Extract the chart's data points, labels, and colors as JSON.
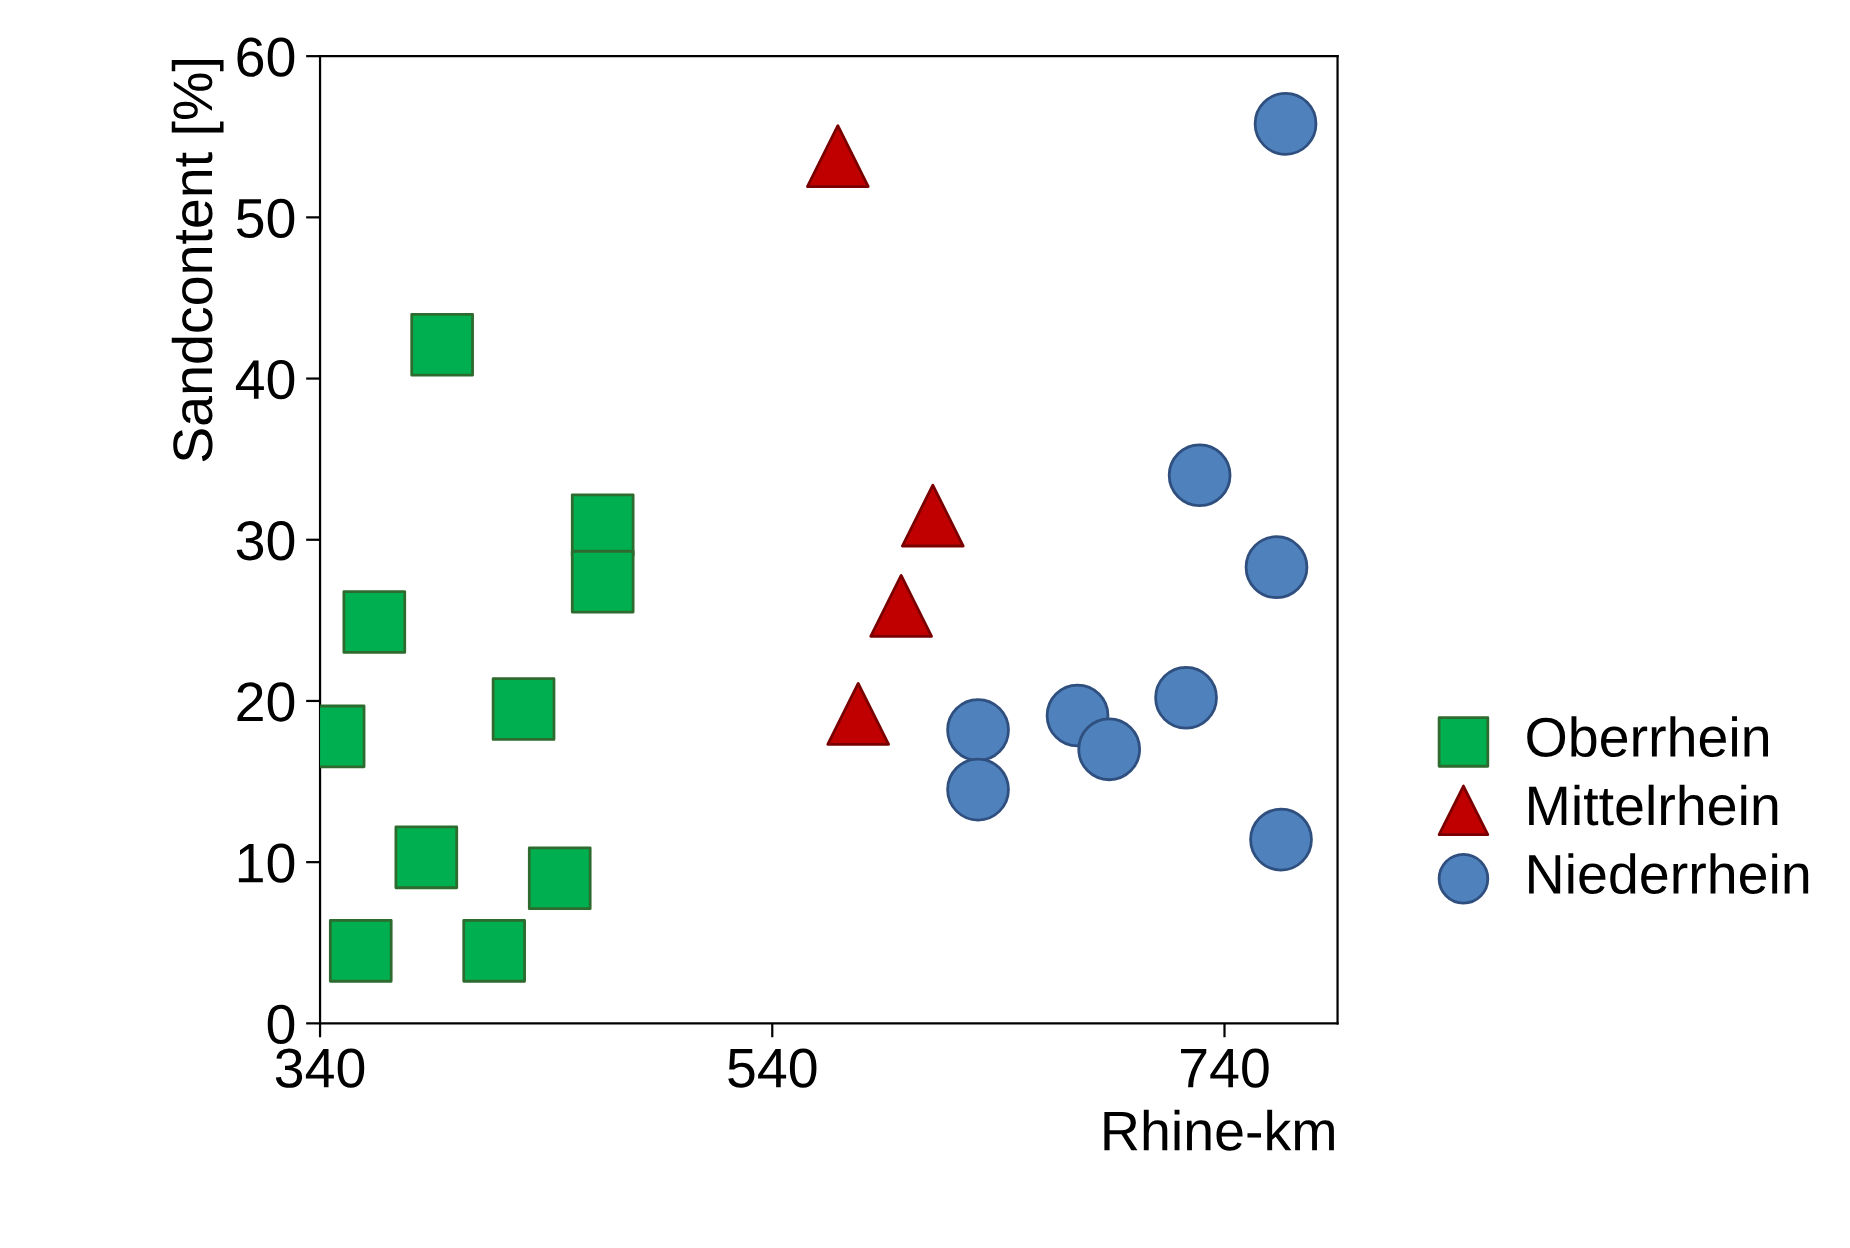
{
  "chart_data": {
    "type": "scatter",
    "xlabel": "Rhine-km",
    "ylabel": "Sandcontent [%]",
    "xlim": [
      340,
      790
    ],
    "xticks": [
      340,
      540,
      740
    ],
    "ylim": [
      0,
      60
    ],
    "yticks": [
      0,
      10,
      20,
      30,
      40,
      50,
      60
    ],
    "grid": false,
    "legend": "right",
    "series": [
      {
        "name": "Oberrhein",
        "color": "#00b050",
        "marker": "square",
        "x": [
          346,
          364,
          394,
          358,
          387,
          417,
          430,
          446,
          465,
          465
        ],
        "values": [
          17.8,
          24.9,
          42.1,
          4.5,
          10.3,
          4.5,
          19.5,
          9.0,
          30.9,
          27.4
        ]
      },
      {
        "name": "Mittelrhein",
        "color": "#c00000",
        "marker": "triangle",
        "x": [
          569,
          611,
          597,
          578
        ],
        "values": [
          53.8,
          31.5,
          25.9,
          19.2
        ]
      },
      {
        "name": "Niederrhein",
        "color": "#4f81bd",
        "marker": "circle",
        "x": [
          767,
          729,
          763,
          723,
          675,
          689,
          631,
          631,
          765
        ],
        "values": [
          55.8,
          34.0,
          28.3,
          20.2,
          19.1,
          17.0,
          18.2,
          14.5,
          11.4
        ]
      }
    ]
  }
}
